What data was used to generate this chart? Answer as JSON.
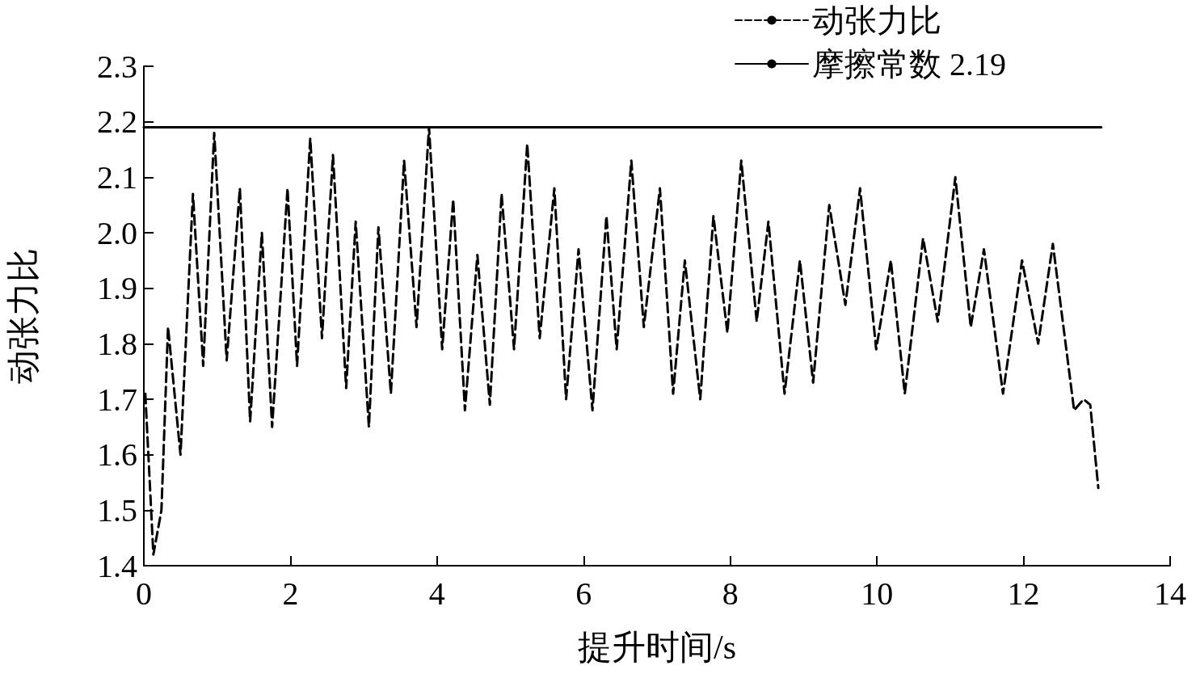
{
  "chart_data": {
    "type": "line",
    "xlabel": "提升时间/s",
    "ylabel": "动张力比",
    "xlim": [
      0,
      14
    ],
    "xticks": [
      0,
      2,
      4,
      6,
      8,
      10,
      12,
      14
    ],
    "ylim": [
      1.4,
      2.3
    ],
    "yticks": [
      1.4,
      1.5,
      1.6,
      1.7,
      1.8,
      1.9,
      {
        "value": 2,
        "label": "2.0"
      },
      2.1,
      2.2,
      2.3
    ],
    "legend": "top right",
    "marker": "none",
    "series": [
      {
        "name": "动张力比",
        "color": "#000000",
        "line_style": "dashed",
        "x": [
          0.02,
          0.13,
          0.24,
          0.33,
          0.5,
          0.67,
          0.81,
          0.96,
          1.13,
          1.31,
          1.45,
          1.61,
          1.75,
          1.96,
          2.09,
          2.27,
          2.43,
          2.58,
          2.76,
          2.89,
          3.07,
          3.2,
          3.37,
          3.55,
          3.72,
          3.89,
          4.07,
          4.22,
          4.38,
          4.55,
          4.72,
          4.88,
          5.05,
          5.23,
          5.4,
          5.6,
          5.76,
          5.93,
          6.12,
          6.31,
          6.45,
          6.65,
          6.82,
          7.04,
          7.22,
          7.38,
          7.59,
          7.77,
          7.96,
          8.15,
          8.36,
          8.52,
          8.74,
          8.95,
          9.13,
          9.35,
          9.57,
          9.77,
          9.99,
          10.19,
          10.38,
          10.63,
          10.83,
          11.07,
          11.28,
          11.46,
          11.72,
          11.98,
          12.2,
          12.4,
          12.69,
          12.82,
          12.91,
          13.02
        ],
        "values": [
          1.71,
          1.42,
          1.5,
          1.83,
          1.6,
          2.07,
          1.76,
          2.18,
          1.77,
          2.08,
          1.66,
          2.0,
          1.65,
          2.08,
          1.76,
          2.17,
          1.81,
          2.14,
          1.72,
          2.02,
          1.65,
          2.01,
          1.71,
          2.13,
          1.83,
          2.19,
          1.79,
          2.06,
          1.68,
          1.96,
          1.69,
          2.07,
          1.79,
          2.16,
          1.81,
          2.08,
          1.7,
          1.97,
          1.68,
          2.03,
          1.79,
          2.13,
          1.83,
          2.08,
          1.71,
          1.95,
          1.7,
          2.03,
          1.82,
          2.13,
          1.84,
          2.02,
          1.71,
          1.95,
          1.73,
          2.05,
          1.87,
          2.08,
          1.79,
          1.95,
          1.71,
          1.99,
          1.84,
          2.1,
          1.83,
          1.97,
          1.71,
          1.95,
          1.8,
          1.98,
          1.68,
          1.7,
          1.69,
          1.54
        ]
      },
      {
        "name": "摩擦常数 2.19",
        "color": "#000000",
        "line_style": "solid",
        "x": [
          0,
          13.06
        ],
        "values": [
          2.19,
          2.19
        ]
      }
    ]
  }
}
